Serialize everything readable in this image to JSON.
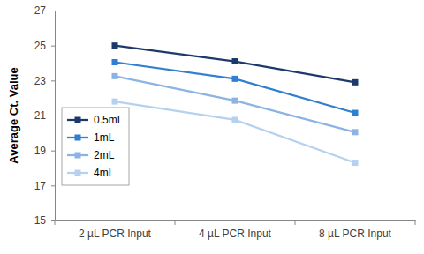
{
  "chart_data": {
    "type": "line",
    "y_label": "Average Ct. Value",
    "categories": [
      "2 µL PCR Input",
      "4 µL PCR Input",
      "8 µL PCR Input"
    ],
    "series": [
      {
        "name": "0.5mL",
        "color": "#1b3a6b",
        "values": [
          25.0,
          24.1,
          22.9
        ]
      },
      {
        "name": "1mL",
        "color": "#2f7fd2",
        "values": [
          24.05,
          23.1,
          21.15
        ]
      },
      {
        "name": "2mL",
        "color": "#8cb4e2",
        "values": [
          23.25,
          21.85,
          20.05
        ]
      },
      {
        "name": "4mL",
        "color": "#b6d1ef",
        "values": [
          21.8,
          20.75,
          18.3
        ]
      }
    ],
    "ylim": [
      15,
      27
    ],
    "yticks": [
      15,
      17,
      19,
      21,
      23,
      25,
      27
    ],
    "grid": false,
    "legend": "left",
    "marker": "square"
  }
}
